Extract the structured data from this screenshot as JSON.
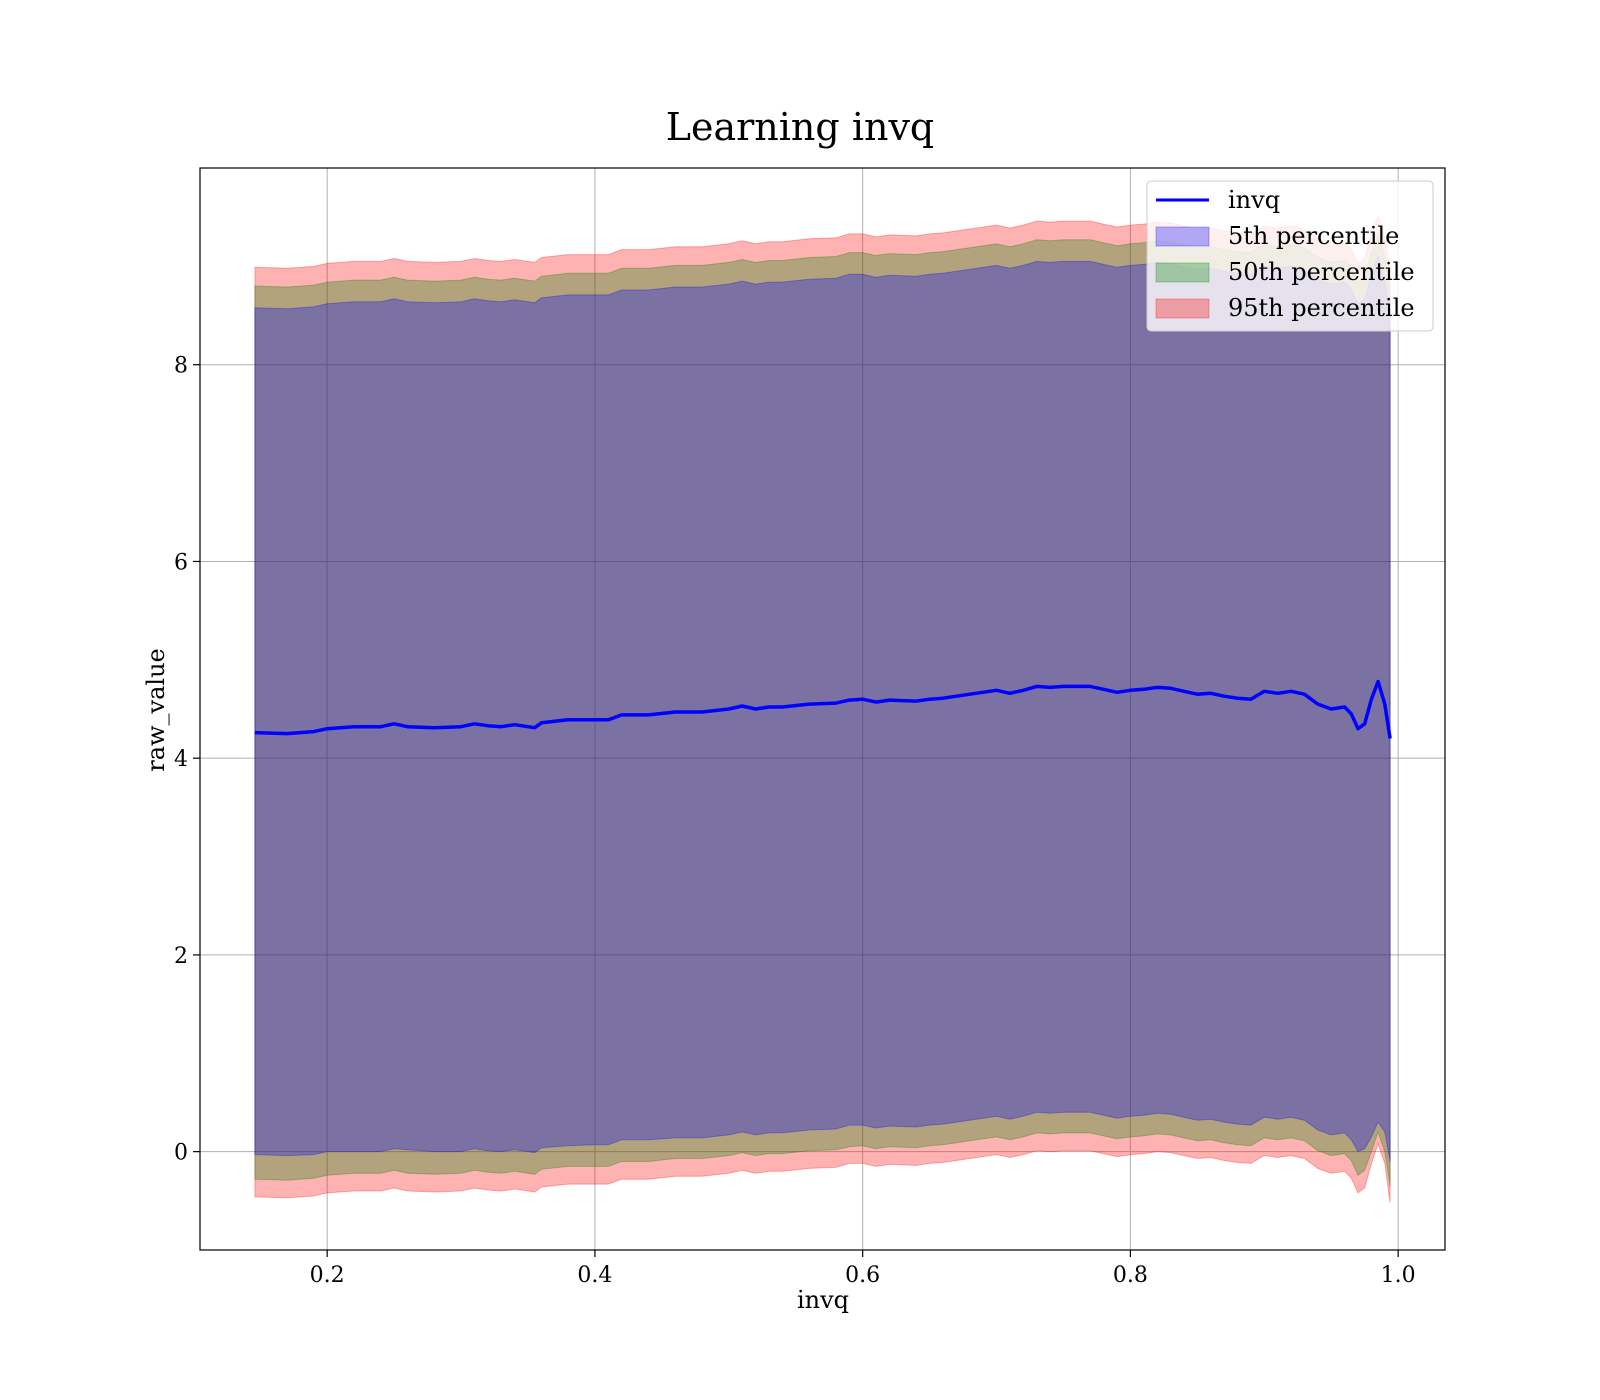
{
  "chart_data": {
    "type": "area",
    "title": "Learning invq",
    "xlabel": "invq",
    "ylabel": "raw_value",
    "xlim": [
      0.105,
      1.035
    ],
    "ylim": [
      -1.0,
      10.0
    ],
    "xticks": [
      0.2,
      0.4,
      0.6,
      0.8,
      1.0
    ],
    "xtick_labels": [
      "0.2",
      "0.4",
      "0.6",
      "0.8",
      "1.0"
    ],
    "yticks": [
      0,
      2,
      4,
      6,
      8
    ],
    "ytick_labels": [
      "0",
      "2",
      "4",
      "6",
      "8"
    ],
    "grid": true,
    "legend_position": "top-right",
    "x": [
      0.146,
      0.17,
      0.19,
      0.2,
      0.22,
      0.24,
      0.25,
      0.26,
      0.28,
      0.3,
      0.31,
      0.32,
      0.33,
      0.34,
      0.355,
      0.36,
      0.38,
      0.4,
      0.41,
      0.42,
      0.44,
      0.46,
      0.48,
      0.5,
      0.51,
      0.52,
      0.53,
      0.54,
      0.56,
      0.58,
      0.59,
      0.6,
      0.61,
      0.62,
      0.64,
      0.65,
      0.66,
      0.68,
      0.7,
      0.71,
      0.72,
      0.73,
      0.74,
      0.75,
      0.77,
      0.78,
      0.79,
      0.8,
      0.81,
      0.82,
      0.83,
      0.84,
      0.85,
      0.86,
      0.87,
      0.88,
      0.89,
      0.9,
      0.91,
      0.92,
      0.93,
      0.94,
      0.95,
      0.96,
      0.965,
      0.97,
      0.975,
      0.98,
      0.985,
      0.99,
      0.994
    ],
    "series": [
      {
        "name": "invq",
        "color": "#0000ff",
        "values": [
          4.26,
          4.25,
          4.27,
          4.3,
          4.32,
          4.32,
          4.35,
          4.32,
          4.31,
          4.32,
          4.35,
          4.33,
          4.32,
          4.34,
          4.31,
          4.36,
          4.39,
          4.39,
          4.39,
          4.44,
          4.44,
          4.47,
          4.47,
          4.5,
          4.53,
          4.5,
          4.52,
          4.52,
          4.55,
          4.56,
          4.59,
          4.6,
          4.57,
          4.59,
          4.58,
          4.6,
          4.61,
          4.65,
          4.69,
          4.66,
          4.69,
          4.73,
          4.72,
          4.73,
          4.73,
          4.7,
          4.67,
          4.69,
          4.7,
          4.72,
          4.71,
          4.68,
          4.65,
          4.66,
          4.63,
          4.61,
          4.6,
          4.68,
          4.66,
          4.68,
          4.65,
          4.55,
          4.5,
          4.52,
          4.45,
          4.3,
          4.35,
          4.6,
          4.78,
          4.55,
          4.2
        ]
      },
      {
        "name": "5th percentile",
        "color": "#0000ff",
        "lower": [
          -0.03,
          -0.04,
          -0.03,
          0.0,
          0.0,
          0.0,
          0.03,
          0.02,
          0.0,
          0.0,
          0.03,
          0.01,
          0.0,
          0.02,
          -0.01,
          0.04,
          0.06,
          0.07,
          0.07,
          0.12,
          0.12,
          0.14,
          0.14,
          0.17,
          0.2,
          0.17,
          0.19,
          0.19,
          0.22,
          0.23,
          0.27,
          0.27,
          0.24,
          0.26,
          0.25,
          0.27,
          0.28,
          0.32,
          0.36,
          0.33,
          0.36,
          0.4,
          0.39,
          0.4,
          0.4,
          0.37,
          0.34,
          0.36,
          0.37,
          0.39,
          0.38,
          0.35,
          0.32,
          0.33,
          0.3,
          0.28,
          0.27,
          0.35,
          0.33,
          0.35,
          0.32,
          0.22,
          0.17,
          0.19,
          0.12,
          0.0,
          0.03,
          0.15,
          0.3,
          0.2,
          -0.1
        ],
        "upper": [
          8.58,
          8.57,
          8.59,
          8.62,
          8.64,
          8.64,
          8.67,
          8.64,
          8.63,
          8.64,
          8.67,
          8.65,
          8.64,
          8.66,
          8.63,
          8.68,
          8.71,
          8.71,
          8.71,
          8.76,
          8.76,
          8.79,
          8.79,
          8.82,
          8.85,
          8.82,
          8.84,
          8.84,
          8.87,
          8.88,
          8.92,
          8.92,
          8.89,
          8.91,
          8.9,
          8.92,
          8.93,
          8.97,
          9.01,
          8.98,
          9.01,
          9.05,
          9.04,
          9.05,
          9.05,
          9.02,
          8.99,
          9.01,
          9.02,
          9.04,
          9.03,
          9.0,
          8.97,
          8.98,
          8.95,
          8.93,
          8.92,
          9.0,
          8.98,
          9.0,
          8.97,
          8.87,
          8.82,
          8.84,
          8.77,
          8.62,
          8.67,
          8.92,
          9.1,
          8.87,
          8.52
        ]
      },
      {
        "name": "50th percentile",
        "color": "#008000",
        "lower": [
          -0.28,
          -0.29,
          -0.27,
          -0.24,
          -0.22,
          -0.22,
          -0.19,
          -0.22,
          -0.23,
          -0.22,
          -0.19,
          -0.21,
          -0.22,
          -0.2,
          -0.23,
          -0.18,
          -0.15,
          -0.15,
          -0.15,
          -0.1,
          -0.1,
          -0.07,
          -0.07,
          -0.04,
          -0.01,
          -0.04,
          -0.02,
          -0.02,
          0.01,
          0.02,
          0.05,
          0.06,
          0.03,
          0.05,
          0.04,
          0.06,
          0.07,
          0.11,
          0.15,
          0.12,
          0.15,
          0.19,
          0.18,
          0.19,
          0.19,
          0.16,
          0.13,
          0.15,
          0.16,
          0.18,
          0.17,
          0.14,
          0.11,
          0.12,
          0.09,
          0.07,
          0.06,
          0.14,
          0.12,
          0.14,
          0.11,
          0.01,
          -0.04,
          -0.02,
          -0.09,
          -0.24,
          -0.19,
          0.0,
          0.2,
          0.0,
          -0.35
        ],
        "upper": [
          8.8,
          8.79,
          8.81,
          8.84,
          8.86,
          8.86,
          8.89,
          8.86,
          8.85,
          8.86,
          8.89,
          8.87,
          8.86,
          8.88,
          8.85,
          8.9,
          8.93,
          8.93,
          8.93,
          8.98,
          8.98,
          9.01,
          9.01,
          9.04,
          9.07,
          9.04,
          9.06,
          9.06,
          9.09,
          9.1,
          9.14,
          9.14,
          9.11,
          9.13,
          9.12,
          9.14,
          9.15,
          9.19,
          9.23,
          9.2,
          9.23,
          9.27,
          9.26,
          9.27,
          9.27,
          9.24,
          9.21,
          9.23,
          9.24,
          9.26,
          9.25,
          9.22,
          9.19,
          9.2,
          9.17,
          9.15,
          9.14,
          9.22,
          9.2,
          9.22,
          9.19,
          9.09,
          9.04,
          9.06,
          8.99,
          8.84,
          8.89,
          9.14,
          9.32,
          9.09,
          8.74
        ]
      },
      {
        "name": "95th percentile",
        "color": "#ff0000",
        "lower": [
          -0.46,
          -0.47,
          -0.45,
          -0.42,
          -0.4,
          -0.4,
          -0.37,
          -0.4,
          -0.41,
          -0.4,
          -0.37,
          -0.39,
          -0.4,
          -0.38,
          -0.41,
          -0.36,
          -0.33,
          -0.33,
          -0.33,
          -0.28,
          -0.28,
          -0.25,
          -0.25,
          -0.22,
          -0.19,
          -0.22,
          -0.2,
          -0.2,
          -0.17,
          -0.16,
          -0.12,
          -0.12,
          -0.15,
          -0.13,
          -0.14,
          -0.12,
          -0.11,
          -0.07,
          -0.03,
          -0.06,
          -0.03,
          0.01,
          0.0,
          0.01,
          0.01,
          -0.02,
          -0.05,
          -0.03,
          -0.02,
          0.0,
          -0.01,
          -0.04,
          -0.07,
          -0.06,
          -0.09,
          -0.11,
          -0.12,
          -0.04,
          -0.06,
          -0.04,
          -0.07,
          -0.17,
          -0.22,
          -0.2,
          -0.27,
          -0.42,
          -0.37,
          -0.12,
          0.08,
          -0.12,
          -0.52
        ],
        "upper": [
          8.99,
          8.98,
          9.0,
          9.03,
          9.05,
          9.05,
          9.08,
          9.05,
          9.04,
          9.05,
          9.08,
          9.06,
          9.05,
          9.07,
          9.04,
          9.09,
          9.12,
          9.12,
          9.12,
          9.17,
          9.17,
          9.2,
          9.2,
          9.23,
          9.26,
          9.23,
          9.25,
          9.25,
          9.28,
          9.29,
          9.33,
          9.33,
          9.3,
          9.32,
          9.31,
          9.33,
          9.34,
          9.38,
          9.42,
          9.39,
          9.42,
          9.46,
          9.45,
          9.46,
          9.46,
          9.43,
          9.4,
          9.42,
          9.43,
          9.45,
          9.44,
          9.41,
          9.38,
          9.39,
          9.36,
          9.34,
          9.33,
          9.41,
          9.39,
          9.41,
          9.38,
          9.28,
          9.23,
          9.25,
          9.18,
          9.03,
          9.08,
          9.33,
          9.51,
          9.28,
          8.93
        ]
      }
    ]
  }
}
